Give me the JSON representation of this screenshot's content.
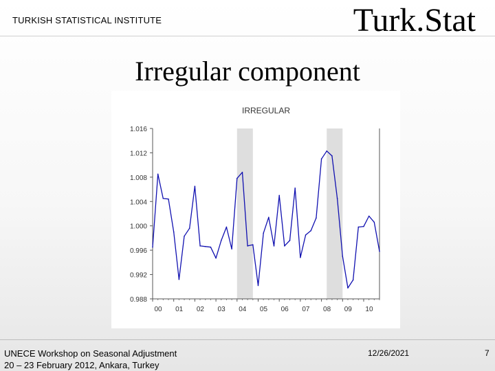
{
  "header": {
    "institute": "TURKISH STATISTICAL INSTITUTE",
    "logo_text": "Turk.Stat"
  },
  "slide": {
    "title": "Irregular component"
  },
  "footer": {
    "line1": "UNECE Workshop on Seasonal Adjustment",
    "line2": "20 – 23 February 2012, Ankara, Turkey",
    "date": "12/26/2021",
    "page": "7"
  },
  "chart_data": {
    "type": "line",
    "title": "IRREGULAR",
    "xlabel": "",
    "ylabel": "",
    "xlim": [
      2000.0,
      2010.75
    ],
    "ylim": [
      0.988,
      1.016
    ],
    "yticks": [
      "1.016",
      "1.012",
      "1.008",
      "1.004",
      "1.000",
      "0.996",
      "0.992",
      "0.988"
    ],
    "xticks": [
      "00",
      "01",
      "02",
      "03",
      "04",
      "05",
      "06",
      "07",
      "08",
      "09",
      "10"
    ],
    "line_color": "#1010b0",
    "shade_color": "#dedede",
    "recession_shading": [
      {
        "start": 2004.0,
        "end": 2004.75
      },
      {
        "start": 2008.25,
        "end": 2009.0
      }
    ],
    "series": [
      {
        "x": [
          2000.0,
          2000.25,
          2000.5,
          2000.75,
          2001.0,
          2001.25,
          2001.5,
          2001.75,
          2002.0,
          2002.25,
          2002.5,
          2002.75,
          2003.0,
          2003.25,
          2003.5,
          2003.75,
          2004.0,
          2004.25,
          2004.5,
          2004.75,
          2005.0,
          2005.25,
          2005.5,
          2005.75,
          2006.0,
          2006.25,
          2006.5,
          2006.75,
          2007.0,
          2007.25,
          2007.5,
          2007.75,
          2008.0,
          2008.25,
          2008.5,
          2008.75,
          2009.0,
          2009.25,
          2009.5,
          2009.75,
          2010.0,
          2010.25,
          2010.5,
          2010.75
        ],
        "values": [
          0.9965,
          1.0085,
          1.0045,
          1.0044,
          0.999,
          0.9912,
          0.9983,
          0.9996,
          1.0065,
          0.9967,
          0.9966,
          0.9965,
          0.9947,
          0.9976,
          0.9998,
          0.9962,
          1.0078,
          1.0088,
          0.9967,
          0.9969,
          0.9902,
          0.9988,
          1.0014,
          0.9967,
          1.005,
          0.9967,
          0.9976,
          1.0062,
          0.9948,
          0.9985,
          0.9992,
          1.0013,
          1.011,
          1.0123,
          1.0115,
          1.0045,
          0.995,
          0.9898,
          0.9911,
          0.9998,
          0.9999,
          1.0016,
          1.0006,
          0.9958
        ]
      }
    ]
  }
}
